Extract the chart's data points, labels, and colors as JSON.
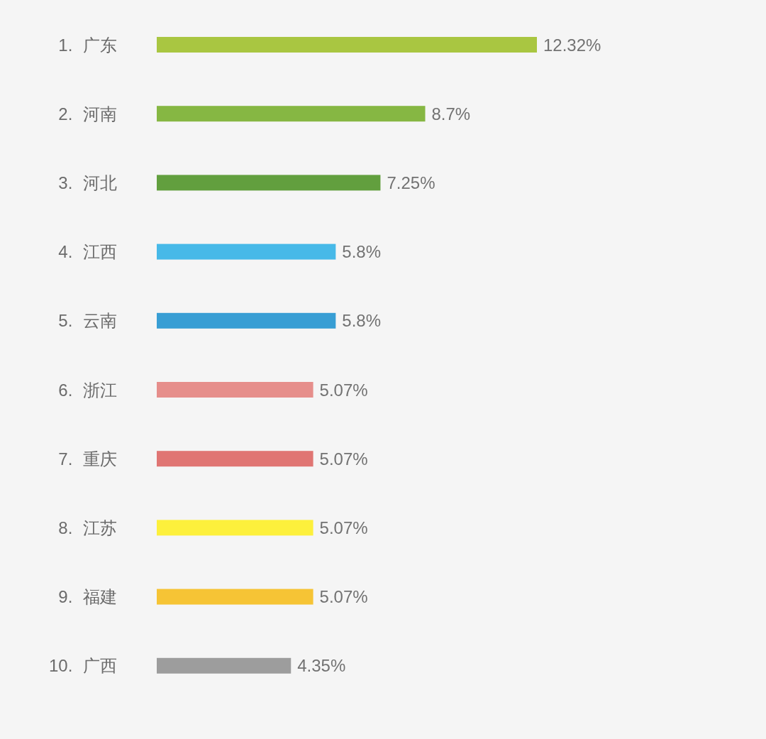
{
  "chart_data": {
    "type": "bar",
    "orientation": "horizontal",
    "categories": [
      "1. 广东",
      "2. 河南",
      "3. 河北",
      "4. 江西",
      "5. 云南",
      "6. 浙江",
      "7. 重庆",
      "8. 江苏",
      "9. 福建",
      "10. 广西"
    ],
    "values": [
      12.32,
      8.7,
      7.25,
      5.8,
      5.8,
      5.07,
      5.07,
      5.07,
      5.07,
      4.35
    ],
    "value_labels": [
      "12.32%",
      "8.7%",
      "7.25%",
      "5.8%",
      "5.8%",
      "5.07%",
      "5.07%",
      "5.07%",
      "5.07%",
      "4.35%"
    ],
    "colors": [
      "#a9c641",
      "#86b743",
      "#629f3e",
      "#47b9e8",
      "#389ed4",
      "#e68e8b",
      "#e07573",
      "#fdf03c",
      "#f6c435",
      "#9d9d9d"
    ]
  }
}
